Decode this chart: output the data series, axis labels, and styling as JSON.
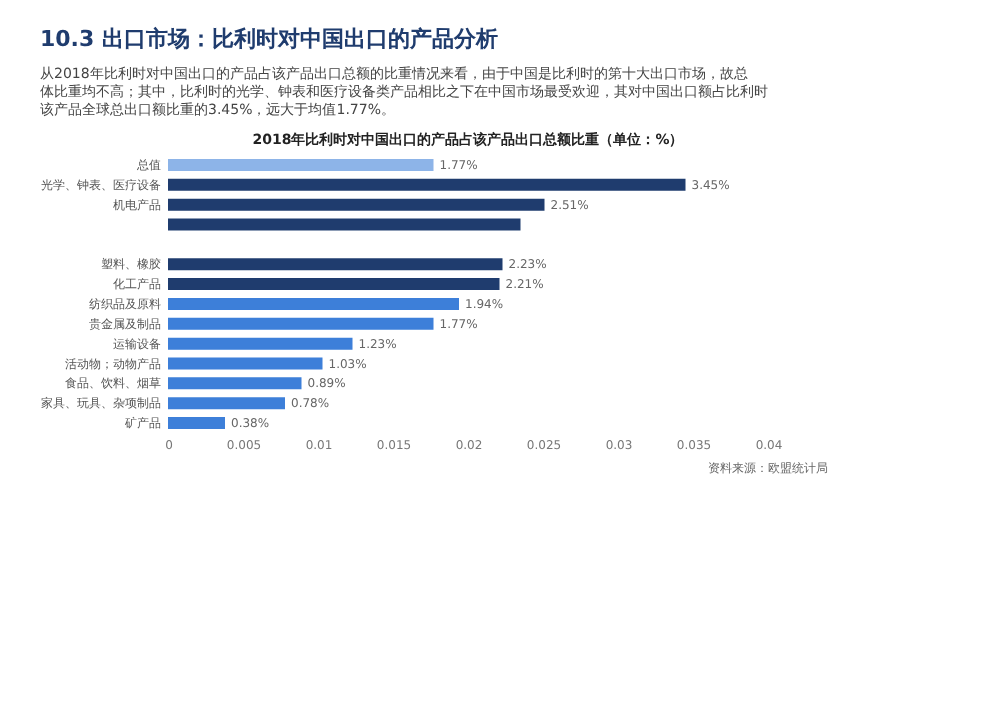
{
  "chart_data": {
    "type": "bar",
    "orientation": "horizontal",
    "title": "2018年比利时对中国出口的产品占该产品出口总额比重（单位：%）",
    "annotations": [
      "10.3 出口市场：比利时对中国出口的产品分析",
      "从2018年比利时对中国出口的产品占该产品出口总额的比重情况来看，由于中国是比利时的第十大出口市场，故总体比重均不高；其中，比利时的光学、钟表和医疗设备类产品相比之下在中国市场最受欢迎，其对中国出口额占比利时该产品全球总出口额比重的3.45%，远大于均值1.77%。",
      "资料来源：欧盟统计局"
    ],
    "categories": [
      "总值",
      "光学、钟表、医疗设备",
      "机电产品",
      null,
      null,
      "塑料、橡胶",
      "化工产品",
      "纺织品及原料",
      "贵金属及制品",
      "运输设备",
      "活动物；动物产品",
      "食品、饮料、烟草",
      "家具、玩具、杂项制品",
      "矿产品"
    ],
    "values": [
      0.0177,
      0.0345,
      0.0251,
      0.0235,
      null,
      0.0223,
      0.0221,
      0.0194,
      0.0177,
      0.0123,
      0.0103,
      0.0089,
      0.0078,
      0.0038
    ],
    "value_labels": [
      "1.77%",
      "3.45%",
      "2.51%",
      null,
      null,
      "2.23%",
      "2.21%",
      "1.94%",
      "1.77%",
      "1.23%",
      "1.03%",
      "0.89%",
      "0.78%",
      "0.38%"
    ],
    "colors": [
      "#8db4e8",
      "#1f3c6e",
      "#1f3c6e",
      "#1f3c6e",
      "#1f3c6e",
      "#1f3c6e",
      "#1f3c6e",
      "#3d7fd9",
      "#3d7fd9",
      "#3d7fd9",
      "#3d7fd9",
      "#3d7fd9",
      "#3d7fd9",
      "#3d7fd9"
    ],
    "xlim": [
      0,
      0.04
    ],
    "xticks": [
      0,
      0.005,
      0.01,
      0.015,
      0.02,
      0.025,
      0.03,
      0.035,
      0.04
    ],
    "grid": false
  }
}
